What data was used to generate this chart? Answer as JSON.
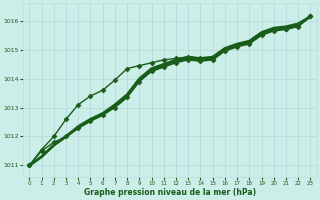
{
  "background_color": "#cceee8",
  "grid_color": "#bbdddd",
  "line_color": "#1a5c1a",
  "xlabel": "Graphe pression niveau de la mer (hPa)",
  "xlim": [
    -0.5,
    23.5
  ],
  "ylim": [
    1010.6,
    1016.6
  ],
  "yticks": [
    1011,
    1012,
    1013,
    1014,
    1015,
    1016
  ],
  "xticks": [
    0,
    1,
    2,
    3,
    4,
    5,
    6,
    7,
    8,
    9,
    10,
    11,
    12,
    13,
    14,
    15,
    16,
    17,
    18,
    19,
    20,
    21,
    22,
    23
  ],
  "series": [
    {
      "y": [
        1011.0,
        1011.5,
        1011.8,
        1012.0,
        1012.3,
        1012.55,
        1012.75,
        1013.0,
        1013.35,
        1013.9,
        1014.25,
        1014.4,
        1014.55,
        1014.65,
        1014.6,
        1014.65,
        1014.95,
        1015.1,
        1015.2,
        1015.5,
        1015.65,
        1015.7,
        1015.8,
        1016.15
      ],
      "lw": 1.0,
      "marker": "D",
      "ms": 2.5,
      "zorder": 3
    },
    {
      "y": [
        1011.0,
        1011.3,
        1011.7,
        1012.0,
        1012.3,
        1012.55,
        1012.75,
        1013.05,
        1013.4,
        1013.95,
        1014.3,
        1014.45,
        1014.6,
        1014.7,
        1014.65,
        1014.7,
        1015.0,
        1015.15,
        1015.25,
        1015.55,
        1015.7,
        1015.75,
        1015.85,
        1016.15
      ],
      "lw": 1.8,
      "marker": null,
      "ms": 0,
      "zorder": 2
    },
    {
      "y": [
        1011.0,
        1011.3,
        1011.7,
        1012.0,
        1012.35,
        1012.6,
        1012.8,
        1013.1,
        1013.45,
        1014.0,
        1014.35,
        1014.5,
        1014.65,
        1014.75,
        1014.7,
        1014.75,
        1015.05,
        1015.2,
        1015.3,
        1015.6,
        1015.75,
        1015.8,
        1015.9,
        1016.15
      ],
      "lw": 1.8,
      "marker": null,
      "ms": 0,
      "zorder": 2
    },
    {
      "y": [
        1011.0,
        1011.55,
        1012.0,
        1012.6,
        1013.1,
        1013.4,
        1013.6,
        1013.95,
        1014.35,
        1014.45,
        1014.55,
        1014.65,
        1014.7,
        1014.75,
        1014.7,
        1014.7,
        1015.0,
        1015.15,
        1015.25,
        1015.55,
        1015.7,
        1015.72,
        1015.82,
        1016.15
      ],
      "lw": 1.0,
      "marker": "D",
      "ms": 2.5,
      "zorder": 3
    }
  ]
}
